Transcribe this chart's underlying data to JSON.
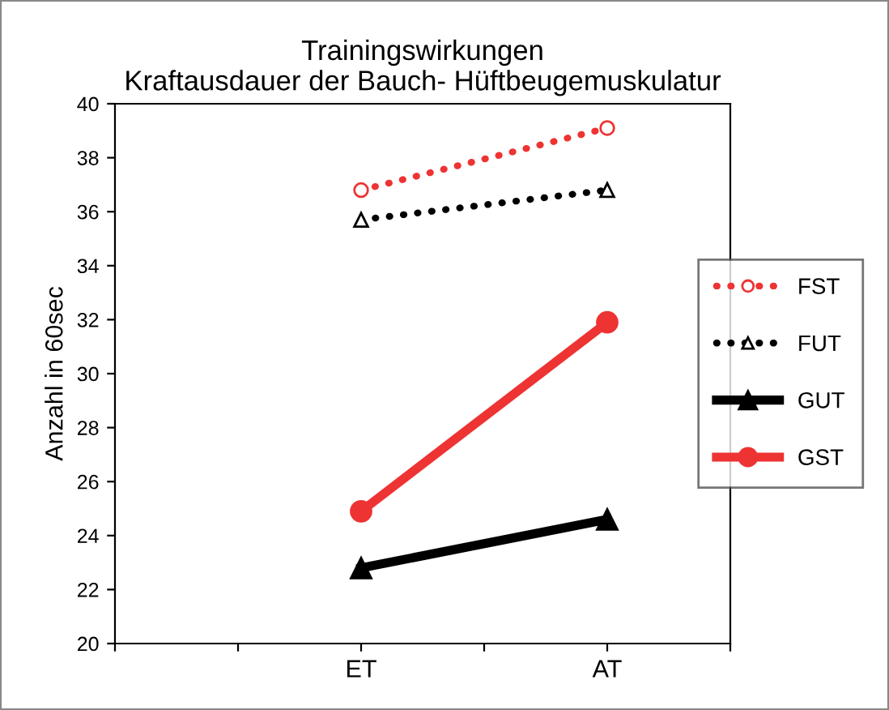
{
  "chart_data": {
    "type": "line",
    "title": "Trainingswirkungen\nKraftausdauer der Bauch- Hüftbeugemuskulatur",
    "ylabel": "Anzahl in 60sec",
    "categories": [
      null,
      null,
      "ET",
      null,
      "AT",
      null
    ],
    "series": [
      {
        "name": "FST",
        "color": "#ee3333",
        "marker": "circle",
        "line_style": "dotted",
        "values": [
          null,
          null,
          36.8,
          null,
          39.1,
          null
        ]
      },
      {
        "name": "FUT",
        "color": "#000000",
        "marker": "triangle",
        "line_style": "dotted",
        "values": [
          null,
          null,
          35.7,
          null,
          36.8,
          null
        ]
      },
      {
        "name": "GUT",
        "color": "#000000",
        "marker": "triangle",
        "line_style": "solid",
        "values": [
          null,
          null,
          22.8,
          null,
          24.6,
          null
        ]
      },
      {
        "name": "GST",
        "color": "#ee3333",
        "marker": "circle",
        "line_style": "solid",
        "values": [
          null,
          null,
          24.9,
          null,
          31.9,
          null
        ]
      }
    ],
    "ylim": [
      20,
      40
    ],
    "yticks": [
      20,
      22,
      24,
      26,
      28,
      30,
      32,
      34,
      36,
      38,
      40
    ],
    "grid": false,
    "legend": "right"
  }
}
